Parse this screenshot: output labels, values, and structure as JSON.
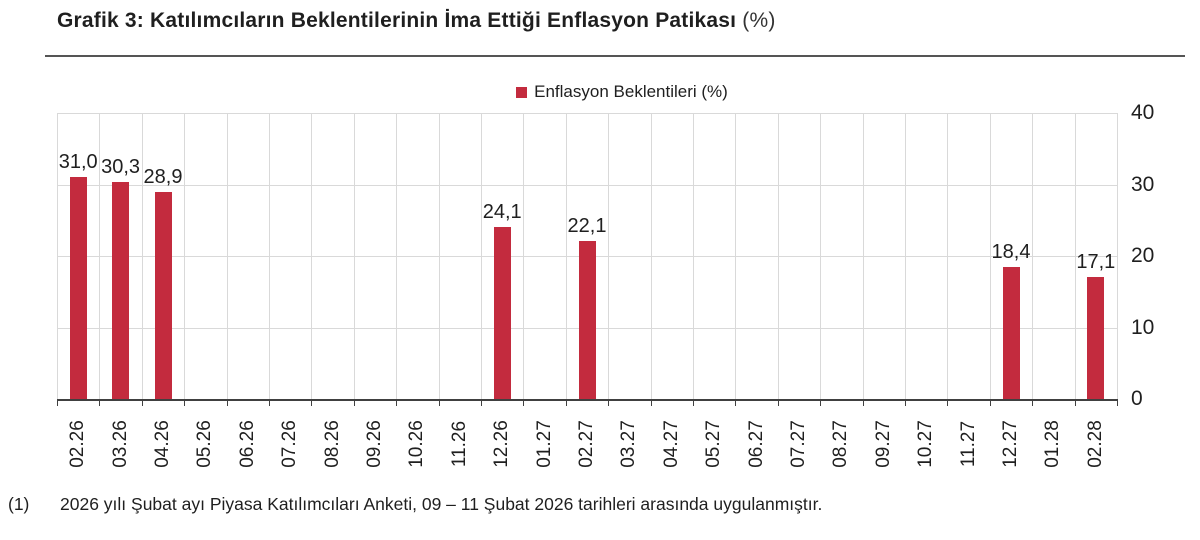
{
  "title": {
    "text": "Grafik 3: Katılımcıların Beklentilerinin İma Ettiği Enflasyon Patikası",
    "suffix": "(%)"
  },
  "legend": {
    "label": "Enflasyon Beklentileri (%)"
  },
  "footnote": {
    "marker": "(1)",
    "text": "2026 yılı Şubat ayı Piyasa Katılımcıları Anketi, 09 – 11 Şubat 2026 tarihleri arasında uygulanmıştır."
  },
  "chart_data": {
    "type": "bar",
    "title": "Grafik 3: Katılımcıların Beklentilerinin İma Ettiği Enflasyon Patikası (%)",
    "legend_entries": [
      "Enflasyon Beklentileri (%)"
    ],
    "legend_position": "top-center",
    "grid": true,
    "xlabel": "",
    "ylabel": "",
    "ylim": [
      0,
      40
    ],
    "y_ticks": [
      0,
      10,
      20,
      30,
      40
    ],
    "y_axis_side": "right",
    "bar_color": "#c32b3e",
    "categories": [
      "02.26",
      "03.26",
      "04.26",
      "05.26",
      "06.26",
      "07.26",
      "08.26",
      "09.26",
      "10.26",
      "11.26",
      "12.26",
      "01.27",
      "02.27",
      "03.27",
      "04.27",
      "05.27",
      "06.27",
      "07.27",
      "08.27",
      "09.27",
      "10.27",
      "11.27",
      "12.27",
      "01.28",
      "02.28"
    ],
    "values": [
      31.0,
      30.3,
      28.9,
      null,
      null,
      null,
      null,
      null,
      null,
      null,
      24.1,
      null,
      22.1,
      null,
      null,
      null,
      null,
      null,
      null,
      null,
      null,
      null,
      18.4,
      null,
      17.1
    ],
    "value_labels": [
      "31,0",
      "30,3",
      "28,9",
      null,
      null,
      null,
      null,
      null,
      null,
      null,
      "24,1",
      null,
      "22,1",
      null,
      null,
      null,
      null,
      null,
      null,
      null,
      null,
      null,
      "18,4",
      null,
      "17,1"
    ]
  }
}
